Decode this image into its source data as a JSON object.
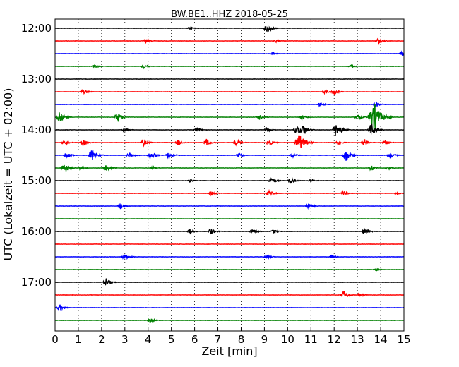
{
  "chart_data": {
    "type": "line",
    "title": "BW.BE1..HHZ 2018-05-25",
    "xlabel": "Zeit  [min]",
    "ylabel": "UTC (Lokalzeit = UTC + 02:00)",
    "xlim": [
      0,
      15
    ],
    "x_ticks": [
      "0",
      "1",
      "2",
      "3",
      "4",
      "5",
      "6",
      "7",
      "8",
      "9",
      "10",
      "11",
      "12",
      "13",
      "14",
      "15"
    ],
    "y_ticks": [
      "12:00",
      "13:00",
      "14:00",
      "15:00",
      "16:00",
      "17:00"
    ],
    "grid": true,
    "trace_interval_minutes": 15,
    "start_time": "12:00",
    "colors": [
      "#000000",
      "#ff0000",
      "#0000ff",
      "#008000"
    ],
    "traces": [
      {
        "start": "12:00",
        "events": [
          {
            "t": 5.8,
            "a": 0.2
          },
          {
            "t": 9.1,
            "a": 0.5
          },
          {
            "t": 9.2,
            "a": 0.3
          }
        ]
      },
      {
        "start": "12:15",
        "events": [
          {
            "t": 3.9,
            "a": 0.3
          },
          {
            "t": 9.5,
            "a": 0.2
          },
          {
            "t": 13.9,
            "a": 0.45
          }
        ]
      },
      {
        "start": "12:30",
        "events": [
          {
            "t": 9.4,
            "a": 0.25
          },
          {
            "t": 14.9,
            "a": 0.3
          }
        ]
      },
      {
        "start": "12:45",
        "events": [
          {
            "t": 1.7,
            "a": 0.3
          },
          {
            "t": 3.8,
            "a": 0.4
          },
          {
            "t": 12.7,
            "a": 0.2
          }
        ]
      },
      {
        "start": "13:00",
        "events": []
      },
      {
        "start": "13:15",
        "events": [
          {
            "t": 1.2,
            "a": 0.35
          },
          {
            "t": 11.6,
            "a": 0.3
          },
          {
            "t": 12.0,
            "a": 0.4
          }
        ]
      },
      {
        "start": "13:30",
        "events": [
          {
            "t": 11.4,
            "a": 0.3
          },
          {
            "t": 13.8,
            "a": 0.4
          }
        ]
      },
      {
        "start": "13:45",
        "events": [
          {
            "t": 0.2,
            "a": 0.9
          },
          {
            "t": 2.7,
            "a": 0.8
          },
          {
            "t": 8.8,
            "a": 0.4
          },
          {
            "t": 10.6,
            "a": 0.4
          },
          {
            "t": 13.0,
            "a": 0.5
          },
          {
            "t": 13.7,
            "a": 2.5
          }
        ]
      },
      {
        "start": "14:00",
        "events": [
          {
            "t": 3.0,
            "a": 0.3
          },
          {
            "t": 6.1,
            "a": 0.4
          },
          {
            "t": 9.1,
            "a": 0.3
          },
          {
            "t": 10.4,
            "a": 0.8
          },
          {
            "t": 10.7,
            "a": 0.7
          },
          {
            "t": 12.1,
            "a": 1.2
          },
          {
            "t": 13.6,
            "a": 1.0
          }
        ]
      },
      {
        "start": "14:15",
        "events": [
          {
            "t": 0.4,
            "a": 0.4
          },
          {
            "t": 1.2,
            "a": 0.5
          },
          {
            "t": 3.8,
            "a": 0.5
          },
          {
            "t": 5.3,
            "a": 0.5
          },
          {
            "t": 6.5,
            "a": 0.6
          },
          {
            "t": 7.8,
            "a": 0.5
          },
          {
            "t": 9.2,
            "a": 0.5
          },
          {
            "t": 10.5,
            "a": 1.5
          },
          {
            "t": 12.2,
            "a": 0.4
          },
          {
            "t": 13.3,
            "a": 0.6
          },
          {
            "t": 14.2,
            "a": 0.4
          }
        ]
      },
      {
        "start": "14:30",
        "events": [
          {
            "t": 0.5,
            "a": 0.5
          },
          {
            "t": 1.6,
            "a": 0.9
          },
          {
            "t": 3.2,
            "a": 0.4
          },
          {
            "t": 4.1,
            "a": 0.6
          },
          {
            "t": 4.9,
            "a": 0.6
          },
          {
            "t": 7.9,
            "a": 0.3
          },
          {
            "t": 10.2,
            "a": 0.4
          },
          {
            "t": 12.5,
            "a": 1.0
          },
          {
            "t": 14.4,
            "a": 0.5
          }
        ]
      },
      {
        "start": "14:45",
        "events": [
          {
            "t": 0.4,
            "a": 0.8
          },
          {
            "t": 1.1,
            "a": 0.3
          },
          {
            "t": 2.2,
            "a": 0.6
          },
          {
            "t": 4.2,
            "a": 0.2
          },
          {
            "t": 13.6,
            "a": 0.4
          },
          {
            "t": 14.3,
            "a": 0.3
          }
        ]
      },
      {
        "start": "15:00",
        "events": [
          {
            "t": 5.8,
            "a": 0.2
          },
          {
            "t": 9.3,
            "a": 0.5
          },
          {
            "t": 10.1,
            "a": 0.5
          },
          {
            "t": 11.0,
            "a": 0.2
          }
        ]
      },
      {
        "start": "15:15",
        "events": [
          {
            "t": 6.7,
            "a": 0.4
          },
          {
            "t": 9.2,
            "a": 0.5
          },
          {
            "t": 12.4,
            "a": 0.3
          },
          {
            "t": 14.7,
            "a": 0.2
          }
        ]
      },
      {
        "start": "15:30",
        "events": [
          {
            "t": 2.8,
            "a": 0.5
          },
          {
            "t": 10.9,
            "a": 0.5
          }
        ]
      },
      {
        "start": "15:45",
        "events": []
      },
      {
        "start": "16:00",
        "events": [
          {
            "t": 5.8,
            "a": 0.4
          },
          {
            "t": 6.7,
            "a": 0.5
          },
          {
            "t": 8.5,
            "a": 0.4
          },
          {
            "t": 9.4,
            "a": 0.3
          },
          {
            "t": 13.3,
            "a": 0.5
          }
        ]
      },
      {
        "start": "16:15",
        "events": []
      },
      {
        "start": "16:30",
        "events": [
          {
            "t": 3.0,
            "a": 0.5
          },
          {
            "t": 9.1,
            "a": 0.3
          },
          {
            "t": 11.9,
            "a": 0.3
          }
        ]
      },
      {
        "start": "16:45",
        "events": [
          {
            "t": 13.8,
            "a": 0.2
          }
        ]
      },
      {
        "start": "17:00",
        "events": [
          {
            "t": 2.2,
            "a": 0.6
          }
        ]
      },
      {
        "start": "17:15",
        "events": [
          {
            "t": 12.4,
            "a": 0.7
          },
          {
            "t": 13.1,
            "a": 0.3
          }
        ]
      },
      {
        "start": "17:30",
        "events": [
          {
            "t": 0.2,
            "a": 0.5
          }
        ]
      },
      {
        "start": "17:45",
        "events": [
          {
            "t": 4.1,
            "a": 0.4
          }
        ]
      }
    ]
  }
}
